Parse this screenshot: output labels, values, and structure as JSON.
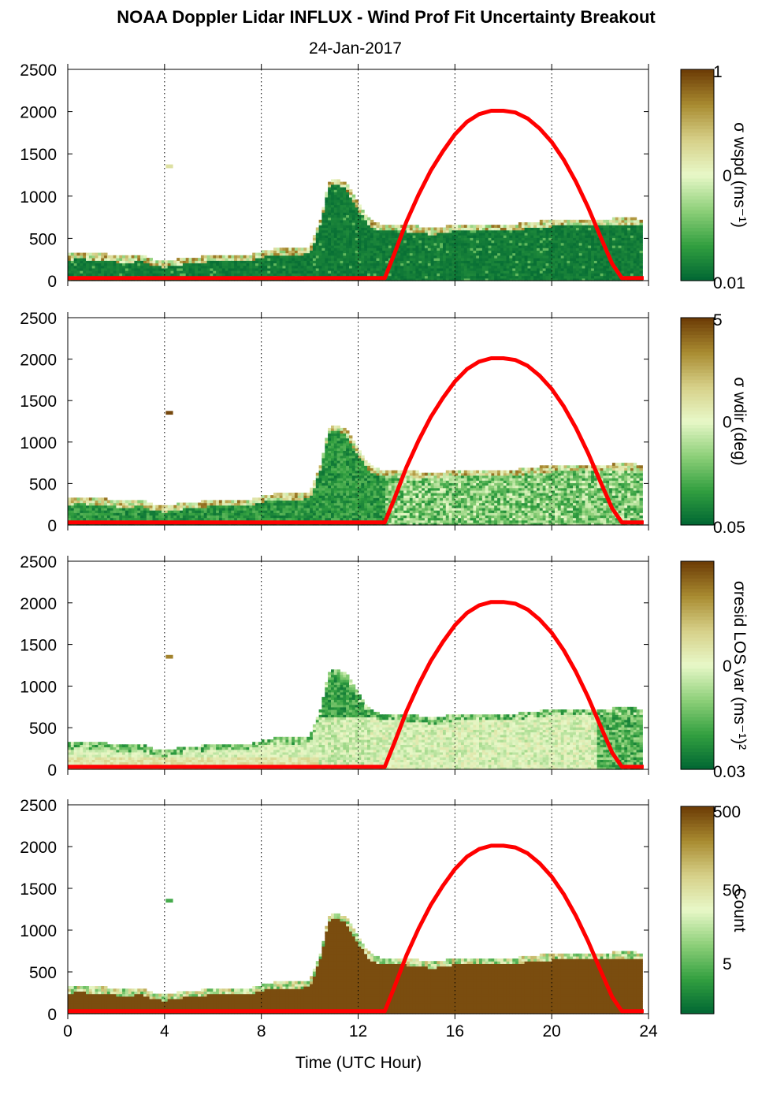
{
  "chart_data": {
    "type": "heatmap",
    "title": "NOAA Doppler Lidar INFLUX - Wind Prof Fit Uncertainty Breakout",
    "subtitle": "24-Jan-2017",
    "xlabel": "Time (UTC Hour)",
    "xlim": [
      0,
      24
    ],
    "xticks": [
      "0",
      "4",
      "8",
      "12",
      "16",
      "20",
      "24"
    ],
    "ylim": [
      0,
      2500
    ],
    "yticks": [
      "0",
      "500",
      "1000",
      "1500",
      "2000",
      "2500"
    ],
    "grid": "vertical dotted lines every 4 hours",
    "overlay_line": {
      "color": "#ff0000",
      "x": [
        0,
        13.1,
        13.5,
        14,
        14.5,
        15,
        15.5,
        16,
        16.5,
        17,
        17.5,
        18,
        18.5,
        19,
        19.5,
        20,
        20.5,
        21,
        21.5,
        22,
        22.5,
        22.9,
        23.8
      ],
      "y": [
        30,
        30,
        320,
        700,
        1020,
        1300,
        1530,
        1730,
        1880,
        1970,
        2010,
        2010,
        1990,
        1920,
        1800,
        1640,
        1430,
        1170,
        870,
        530,
        200,
        30,
        30
      ]
    },
    "data_coverage": {
      "time_hours": [
        0,
        0.5,
        1,
        1.5,
        2,
        2.5,
        3,
        3.5,
        4,
        4.5,
        5,
        5.5,
        6,
        6.5,
        7,
        7.5,
        8,
        8.5,
        9,
        9.5,
        10,
        10.5,
        10.75,
        11,
        11.5,
        12,
        12.5,
        13,
        13.5,
        14,
        14.5,
        15,
        15.5,
        16,
        16.5,
        17,
        17.5,
        18,
        18.5,
        19,
        19.5,
        20,
        20.5,
        21,
        21.5,
        22,
        22.5,
        23,
        23.5,
        23.8
      ],
      "top_height_m": [
        300,
        320,
        300,
        310,
        280,
        270,
        290,
        240,
        210,
        240,
        260,
        270,
        290,
        300,
        290,
        290,
        330,
        360,
        370,
        360,
        380,
        750,
        1150,
        1200,
        1150,
        900,
        700,
        650,
        660,
        640,
        630,
        600,
        620,
        650,
        650,
        660,
        650,
        650,
        650,
        680,
        690,
        700,
        700,
        700,
        710,
        720,
        720,
        730,
        720,
        720
      ]
    },
    "panels": [
      {
        "name": "σ wspd (ms⁻¹)",
        "colorbar_ticks": [
          "1",
          "0",
          "0.01"
        ],
        "scale": "log"
      },
      {
        "name": "σ wdir (deg)",
        "colorbar_ticks": [
          "5",
          "0",
          "0.05"
        ],
        "scale": "log"
      },
      {
        "name": "σresid LOS var (ms⁻¹)²",
        "colorbar_ticks": [
          "0",
          "0.03"
        ],
        "scale": "log"
      },
      {
        "name": "Count",
        "colorbar_ticks": [
          "500",
          "50",
          "5"
        ],
        "scale": "log"
      }
    ],
    "colormap": [
      "#006633",
      "#33a040",
      "#8fd07a",
      "#e8f8c8",
      "#d6d088",
      "#a88a30",
      "#6b3a05"
    ]
  }
}
